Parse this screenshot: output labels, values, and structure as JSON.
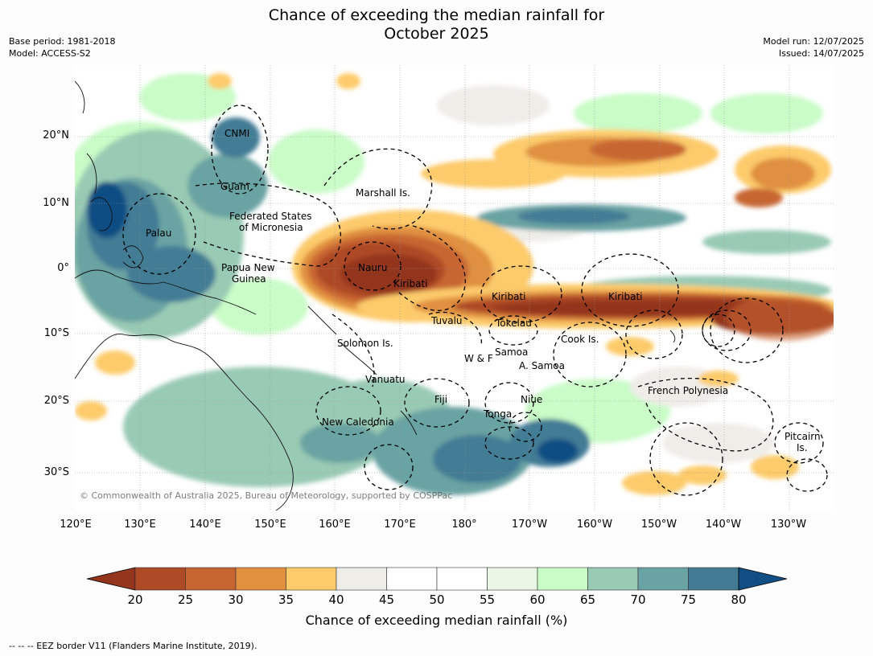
{
  "title_line1": "Chance of exceeding the median rainfall for",
  "title_line2": "October 2025",
  "meta_left": [
    "Base period: 1981-2018",
    "Model: ACCESS-S2"
  ],
  "meta_right": [
    "Model run: 12/07/2025",
    "Issued: 14/07/2025"
  ],
  "lat_ticks": [
    "20°N",
    "10°N",
    "0°",
    "10°S",
    "20°S",
    "30°S"
  ],
  "lon_ticks": [
    "120°E",
    "130°E",
    "140°E",
    "150°E",
    "160°E",
    "170°E",
    "180°",
    "170°W",
    "160°W",
    "150°W",
    "140°W",
    "130°W"
  ],
  "places": [
    {
      "label": "CNMI"
    },
    {
      "label": "Guam"
    },
    {
      "label": "Marshall Is."
    },
    {
      "label": "Federated States"
    },
    {
      "label": "of Micronesia"
    },
    {
      "label": "Palau"
    },
    {
      "label": "Papua New"
    },
    {
      "label": "Guinea"
    },
    {
      "label": "Nauru"
    },
    {
      "label": "Kiribati"
    },
    {
      "label": "Kiribati"
    },
    {
      "label": "Kiribati"
    },
    {
      "label": "Tuvalu"
    },
    {
      "label": "Tokelau"
    },
    {
      "label": "Solomon Is."
    },
    {
      "label": "Cook Is."
    },
    {
      "label": "W & F"
    },
    {
      "label": "Samoa"
    },
    {
      "label": "A. Samoa"
    },
    {
      "label": "Vanuatu"
    },
    {
      "label": "Fiji"
    },
    {
      "label": "Niue"
    },
    {
      "label": "French Polynesia"
    },
    {
      "label": "Tonga"
    },
    {
      "label": "New Caledonia"
    },
    {
      "label": "Pitcairn"
    },
    {
      "label": "Is."
    }
  ],
  "copyright": "© Commonwealth of Australia 2025, Bureau of Meteorology, supported by COSPPac",
  "legend": {
    "ticks": [
      "20",
      "25",
      "30",
      "35",
      "40",
      "45",
      "50",
      "55",
      "60",
      "65",
      "70",
      "75",
      "80"
    ],
    "colors": {
      "below_20": "#93341d",
      "20_25": "#ae4a25",
      "25_30": "#c86632",
      "30_35": "#e0903f",
      "35_40": "#fdcb6a",
      "40_45": "#efede8",
      "45_50": "#ffffff",
      "50_55": "#ffffff",
      "55_60": "#e9f6e6",
      "60_65": "#c9fcc7",
      "65_70": "#99cab4",
      "70_75": "#6aa3a3",
      "75_80": "#437b95",
      "above_80": "#114e83"
    },
    "title": "Chance of exceeding median rainfall (%)"
  },
  "footnote": "--  --  -- EEZ border V11 (Flanders Marine Institute, 2019)."
}
